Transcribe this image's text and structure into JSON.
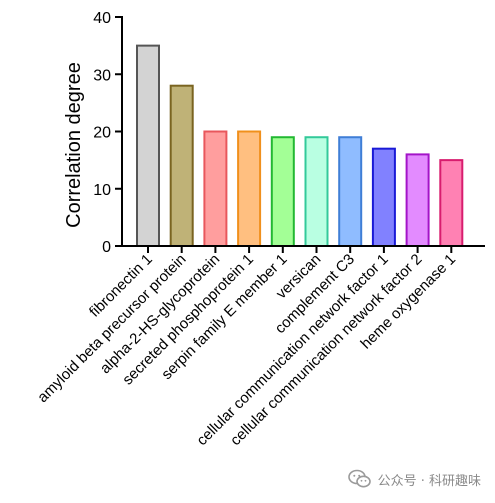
{
  "chart_data": {
    "type": "bar",
    "categories": [
      "fibronectin 1",
      "amyloid beta precursor protein",
      "alpha-2-HS-glycoprotein",
      "secreted phosphoprotein 1",
      "serpin family E member 1",
      "versican",
      "complement C3",
      "cellular communication network factor 1",
      "cellular communication network factor 2",
      "heme oxygenase 1"
    ],
    "values": [
      35,
      28,
      20,
      20,
      19,
      19,
      19,
      17,
      16,
      15
    ],
    "fill_colors": [
      "#d3d3d3",
      "#bfb277",
      "#ff9e9e",
      "#ffbf80",
      "#a3ff96",
      "#b9ffe2",
      "#8fbcff",
      "#8181ff",
      "#e38bff",
      "#ff81b3"
    ],
    "stroke_colors": [
      "#555555",
      "#7a6420",
      "#e8575c",
      "#f0901c",
      "#22b832",
      "#33c99a",
      "#3f7ed6",
      "#1a1ad6",
      "#a314c8",
      "#d81c6e"
    ],
    "ylabel": "Correlation degree",
    "ylim": [
      0,
      40
    ],
    "yticks": [
      0,
      10,
      20,
      30,
      40
    ],
    "grid": false,
    "legend": false
  },
  "watermark": {
    "text": "公众号 · 科研趣味"
  }
}
